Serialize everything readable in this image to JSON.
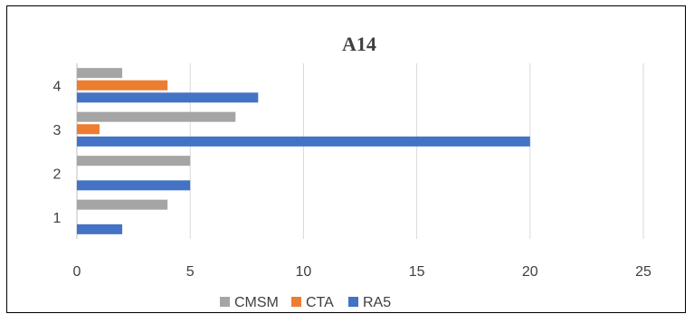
{
  "chart_data": {
    "type": "bar",
    "orientation": "horizontal",
    "title": "A14",
    "xlabel": "",
    "ylabel": "",
    "categories": [
      "1",
      "2",
      "3",
      "4"
    ],
    "xlim": [
      0,
      25
    ],
    "x_ticks": [
      "0",
      "5",
      "10",
      "15",
      "20",
      "25"
    ],
    "grid": true,
    "legend_position": "bottom",
    "series": [
      {
        "name": "RA5",
        "color": "#4472C4",
        "values": [
          2,
          5,
          20,
          8
        ]
      },
      {
        "name": "CTA",
        "color": "#ED7D31",
        "values": [
          0,
          0,
          1,
          4
        ]
      },
      {
        "name": "CMSM",
        "color": "#A5A5A5",
        "values": [
          4,
          5,
          7,
          2
        ]
      }
    ],
    "legend_order": [
      "CMSM",
      "CTA",
      "RA5"
    ]
  }
}
